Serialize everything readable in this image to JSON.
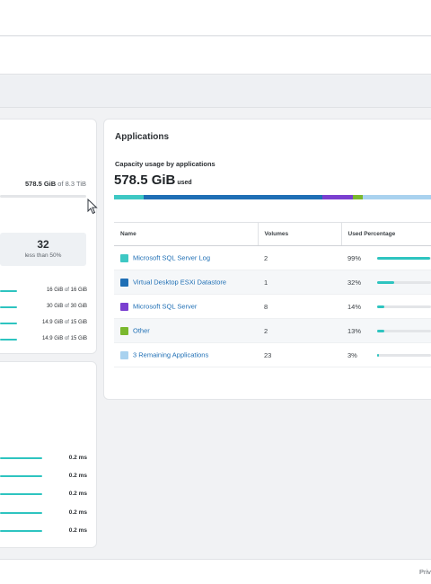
{
  "capacity_summary": {
    "used": "578.5 GiB",
    "of_label": "of",
    "total": "8.3 TiB",
    "stat_value": "32",
    "stat_label": "less than 50%",
    "rows": [
      {
        "used": "16 GiB",
        "of_label": "of",
        "total": "16 GiB"
      },
      {
        "used": "30 GiB",
        "of_label": "of",
        "total": "30 GiB"
      },
      {
        "used": "14.9 GiB",
        "of_label": "of",
        "total": "15 GiB"
      },
      {
        "used": "14.9 GiB",
        "of_label": "of",
        "total": "15 GiB"
      }
    ]
  },
  "latency": {
    "rows": [
      "0.2 ms",
      "0.2 ms",
      "0.2 ms",
      "0.2 ms",
      "0.2 ms"
    ]
  },
  "applications": {
    "title": "Applications",
    "subtitle": "Capacity usage by applications",
    "used_value": "578.5 GiB",
    "used_suffix": "used",
    "segments": [
      {
        "name": "Microsoft SQL Server Log",
        "share": 0.09,
        "color": "#3ec8c4"
      },
      {
        "name": "Virtual Desktop ESXi Datastore",
        "share": 0.54,
        "color": "#1f6fb5"
      },
      {
        "name": "Microsoft SQL Server",
        "share": 0.09,
        "color": "#7a3fd0"
      },
      {
        "name": "Other",
        "share": 0.03,
        "color": "#7ab82e"
      },
      {
        "name": "3 Remaining Applications",
        "share": 0.25,
        "color": "#a9d2ef"
      }
    ],
    "columns": [
      "Name",
      "Volumes",
      "Used Percentage"
    ],
    "rows": [
      {
        "name": "Microsoft SQL Server Log",
        "color": "#3ec8c4",
        "volumes": "2",
        "percent": "99%",
        "value": 0.99
      },
      {
        "name": "Virtual Desktop ESXi Datastore",
        "color": "#1f6fb5",
        "volumes": "1",
        "percent": "32%",
        "value": 0.32
      },
      {
        "name": "Microsoft SQL Server",
        "color": "#7a3fd0",
        "volumes": "8",
        "percent": "14%",
        "value": 0.14
      },
      {
        "name": "Other",
        "color": "#7ab82e",
        "volumes": "2",
        "percent": "13%",
        "value": 0.13
      },
      {
        "name": "3 Remaining Applications",
        "color": "#a9d2ef",
        "volumes": "23",
        "percent": "3%",
        "value": 0.03
      }
    ]
  },
  "footer": {
    "text": "Priv"
  }
}
